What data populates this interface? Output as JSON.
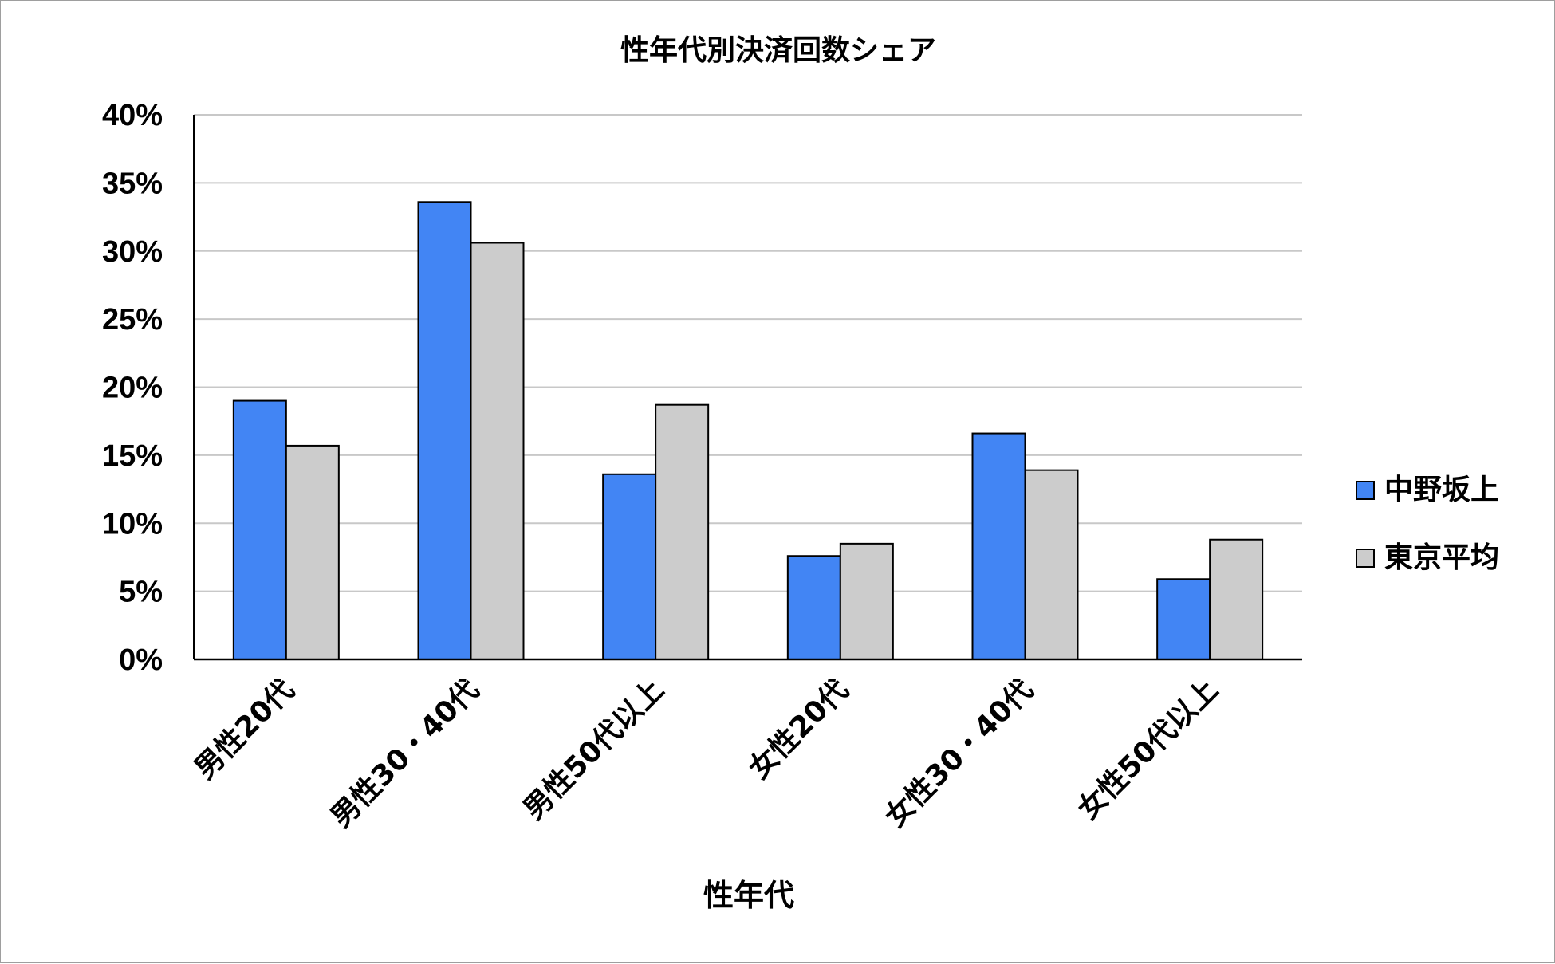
{
  "chart_data": {
    "type": "bar",
    "title": "性年代別決済回数シェア",
    "xlabel": "性年代",
    "ylabel": "",
    "categories": [
      "男性20代",
      "男性30・40代",
      "男性50代以上",
      "女性20代",
      "女性30・40代",
      "女性50代以上"
    ],
    "series": [
      {
        "name": "中野坂上",
        "color": "#4285f4",
        "values": [
          19.0,
          33.6,
          13.6,
          7.6,
          16.6,
          5.9
        ]
      },
      {
        "name": "東京平均",
        "color": "#cccccc",
        "values": [
          15.7,
          30.6,
          18.7,
          8.5,
          13.9,
          8.8
        ]
      }
    ],
    "ylim": [
      0,
      40
    ],
    "yticks": [
      0,
      5,
      10,
      15,
      20,
      25,
      30,
      35,
      40
    ],
    "ytick_labels": [
      "0%",
      "5%",
      "10%",
      "15%",
      "20%",
      "25%",
      "30%",
      "35%",
      "40%"
    ],
    "grid": true,
    "legend_position": "right"
  }
}
